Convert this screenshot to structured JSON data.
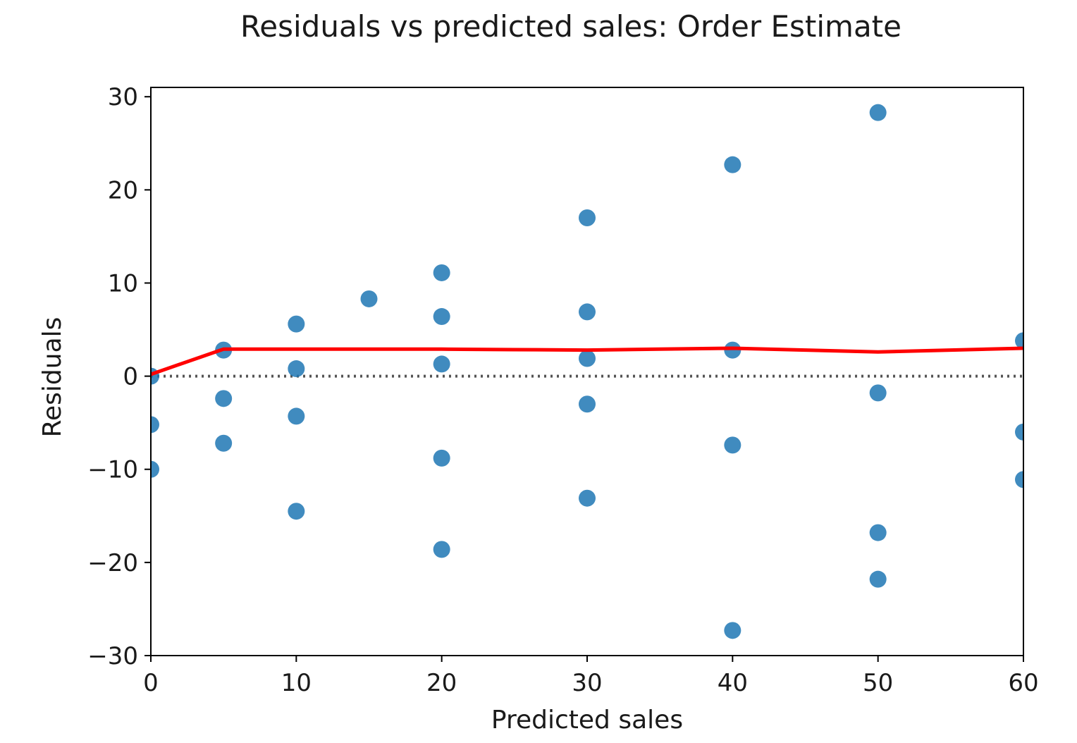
{
  "chart_data": {
    "type": "scatter",
    "title": "Residuals vs predicted sales: Order Estimate",
    "xlabel": "Predicted sales",
    "ylabel": "Residuals",
    "xlim": [
      0,
      60
    ],
    "ylim": [
      -30,
      31
    ],
    "xticks": [
      0,
      10,
      20,
      30,
      40,
      50,
      60
    ],
    "yticks": [
      -30,
      -20,
      -10,
      0,
      10,
      20,
      30
    ],
    "xtick_labels": [
      "0",
      "10",
      "20",
      "30",
      "40",
      "50",
      "60"
    ],
    "ytick_labels": [
      "−30",
      "−20",
      "−10",
      "0",
      "10",
      "20",
      "30"
    ],
    "grid": false,
    "reference_line": {
      "y": 0,
      "style": "dotted",
      "color": "#555555"
    },
    "series": [
      {
        "type": "scatter",
        "color": "#1f77b4",
        "points": [
          [
            0,
            0
          ],
          [
            0,
            -5.2
          ],
          [
            0,
            -10
          ],
          [
            5,
            2.8
          ],
          [
            5,
            -2.4
          ],
          [
            5,
            -7.2
          ],
          [
            10,
            5.6
          ],
          [
            10,
            0.8
          ],
          [
            10,
            -4.3
          ],
          [
            10,
            -14.5
          ],
          [
            15,
            8.3
          ],
          [
            20,
            11.1
          ],
          [
            20,
            6.4
          ],
          [
            20,
            1.3
          ],
          [
            20,
            -8.8
          ],
          [
            20,
            -18.6
          ],
          [
            30,
            17.0
          ],
          [
            30,
            6.9
          ],
          [
            30,
            1.9
          ],
          [
            30,
            -3.0
          ],
          [
            30,
            -13.1
          ],
          [
            40,
            22.7
          ],
          [
            40,
            2.8
          ],
          [
            40,
            -7.4
          ],
          [
            40,
            -27.3
          ],
          [
            50,
            28.3
          ],
          [
            50,
            -1.8
          ],
          [
            50,
            -16.8
          ],
          [
            50,
            -21.8
          ],
          [
            60,
            3.8
          ],
          [
            60,
            -6.0
          ],
          [
            60,
            -11.1
          ]
        ]
      },
      {
        "type": "line",
        "color": "#ff0000",
        "points": [
          [
            0,
            0.2
          ],
          [
            5,
            2.9
          ],
          [
            10,
            2.9
          ],
          [
            15,
            2.9
          ],
          [
            20,
            2.9
          ],
          [
            25,
            2.85
          ],
          [
            30,
            2.8
          ],
          [
            35,
            2.9
          ],
          [
            40,
            3.0
          ],
          [
            45,
            2.8
          ],
          [
            50,
            2.6
          ],
          [
            55,
            2.8
          ],
          [
            60,
            3.0
          ]
        ]
      }
    ]
  }
}
